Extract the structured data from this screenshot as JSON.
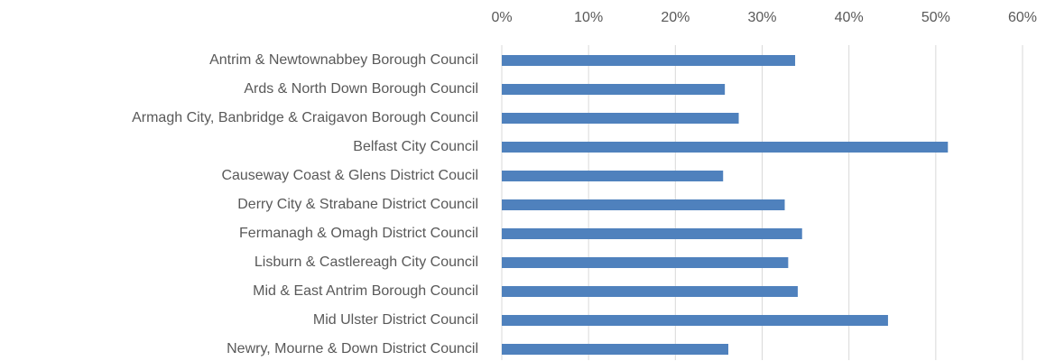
{
  "chart_data": {
    "type": "hbar",
    "categories": [
      "Antrim & Newtownabbey Borough Council",
      "Ards & North Down Borough Council",
      "Armagh City, Banbridge & Craigavon Borough Council",
      "Belfast City Council",
      "Causeway Coast & Glens District Coucil",
      "Derry City & Strabane District Council",
      "Fermanagh & Omagh District Council",
      "Lisburn & Castlereagh City Council",
      "Mid & East Antrim Borough Council",
      "Mid Ulster District Council",
      "Newry, Mourne & Down District Council"
    ],
    "values": [
      33.8,
      25.7,
      27.3,
      51.4,
      25.5,
      32.6,
      34.6,
      33.0,
      34.1,
      44.5,
      26.1
    ],
    "color": "#4f81bd",
    "xlim": [
      0,
      60
    ],
    "xticks": [
      {
        "value": 0,
        "label": "0%"
      },
      {
        "value": 10,
        "label": "10%"
      },
      {
        "value": 20,
        "label": "20%"
      },
      {
        "value": 30,
        "label": "30%"
      },
      {
        "value": 40,
        "label": "40%"
      },
      {
        "value": 50,
        "label": "50%"
      },
      {
        "value": 60,
        "label": "60%"
      }
    ],
    "grid": true
  }
}
